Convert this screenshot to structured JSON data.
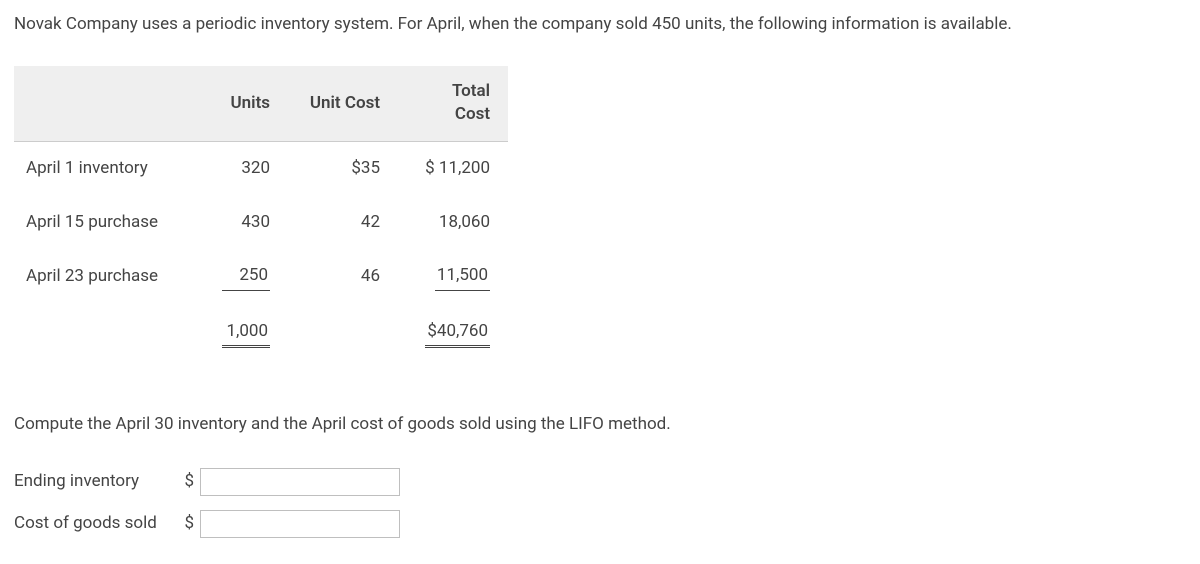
{
  "intro": "Novak Company uses a periodic inventory system. For April, when the company sold 450 units, the following information is available.",
  "table": {
    "headers": {
      "units": "Units",
      "unitcost": "Unit Cost",
      "total_line1": "Total",
      "total_line2": "Cost"
    },
    "rows": [
      {
        "label": "April 1 inventory",
        "units": "320",
        "unitcost": "$35",
        "total": "$ 11,200"
      },
      {
        "label": "April 15 purchase",
        "units": "430",
        "unitcost": "42",
        "total": "18,060"
      },
      {
        "label": "April 23 purchase",
        "units": "250",
        "unitcost": "46",
        "total": "11,500"
      }
    ],
    "totals": {
      "units": "1,000",
      "total": "$40,760"
    }
  },
  "instruction": "Compute the April 30 inventory and the April cost of goods sold using the LIFO method.",
  "answers": {
    "ending_label": "Ending inventory",
    "cogs_label": "Cost of goods sold",
    "currency": "$"
  }
}
